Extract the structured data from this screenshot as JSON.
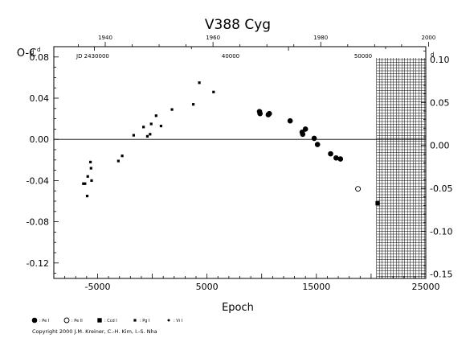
{
  "chart_data": {
    "type": "scatter",
    "title": "V388  Cyg",
    "ylabel": "O-C",
    "ylabel_unit_left": "d",
    "ylabel_unit_right": "d",
    "xlabel": "Epoch",
    "xlim": [
      -9000,
      25000
    ],
    "ylim": [
      -0.135,
      0.09
    ],
    "ylim_right": [
      -0.155,
      0.115
    ],
    "x_ticks": [
      -5000,
      5000,
      15000,
      25000
    ],
    "x_tick_labels": [
      "-5000",
      "5000",
      "15000",
      "25000"
    ],
    "y_ticks": [
      -0.12,
      -0.08,
      -0.04,
      0.0,
      0.04,
      0.08
    ],
    "y_tick_labels": [
      "-0.12",
      "-0.08",
      "-0.04",
      "0.00",
      "0.04",
      "0.08"
    ],
    "y_ticks_right": [
      -0.15,
      -0.1,
      -0.05,
      0.0,
      0.05,
      0.1
    ],
    "y_tick_labels_right": [
      "-0.15",
      "-0.10",
      "-0.05",
      "0.00",
      "0.05",
      "0.10"
    ],
    "year_ticks": [
      1940,
      1960,
      1980,
      2000
    ],
    "year_tick_epochs": [
      -4300,
      5550,
      15400,
      25250
    ],
    "jd_ticks": [
      "JD 2430000",
      "40000",
      "50000"
    ],
    "jd_tick_epochs": [
      -5300,
      12450,
      30200
    ],
    "grid": false,
    "legend_position": "bottom-left",
    "legend": [
      {
        "marker": "circle-filled",
        "label": ": Pe I"
      },
      {
        "marker": "circle-open",
        "label": ": Pe II"
      },
      {
        "marker": "square-large",
        "label": ": Ccd I"
      },
      {
        "marker": "square-small",
        "label": ": Pg I"
      },
      {
        "marker": "dot",
        "label": ": Vi I"
      }
    ],
    "series": [
      {
        "marker": "square-small",
        "points": [
          [
            -6300,
            -0.043
          ],
          [
            -6150,
            -0.043
          ],
          [
            -5950,
            -0.055
          ],
          [
            -5900,
            -0.036
          ],
          [
            -5650,
            -0.022
          ],
          [
            -5600,
            -0.028
          ],
          [
            -5550,
            -0.04
          ],
          [
            -3100,
            -0.021
          ],
          [
            -2750,
            -0.016
          ],
          [
            -1700,
            0.004
          ],
          [
            -800,
            0.012
          ],
          [
            -450,
            0.003
          ],
          [
            -200,
            0.005
          ],
          [
            -100,
            0.015
          ],
          [
            350,
            0.023
          ],
          [
            800,
            0.013
          ],
          [
            1800,
            0.029
          ],
          [
            3750,
            0.034
          ],
          [
            4300,
            0.055
          ],
          [
            5600,
            0.046
          ]
        ]
      },
      {
        "marker": "circle-filled",
        "points": [
          [
            9800,
            0.027
          ],
          [
            9850,
            0.025
          ],
          [
            10600,
            0.024
          ],
          [
            10700,
            0.025
          ],
          [
            12600,
            0.018
          ],
          [
            13700,
            0.007
          ],
          [
            13750,
            0.005
          ],
          [
            14000,
            0.01
          ],
          [
            14800,
            0.001
          ],
          [
            15100,
            -0.005
          ],
          [
            16300,
            -0.014
          ],
          [
            16800,
            -0.018
          ],
          [
            17200,
            -0.019
          ]
        ]
      },
      {
        "marker": "circle-open",
        "points": [
          [
            18800,
            -0.048
          ]
        ]
      },
      {
        "marker": "square-large",
        "points": [
          [
            20600,
            -0.062
          ]
        ]
      }
    ],
    "zero_line": 0.0,
    "hatched_region_x": [
      20500,
      25000
    ]
  },
  "copyright": "Copyright 2000 J.M. Kreiner, C.-H. Kim, I.-S. Nha"
}
